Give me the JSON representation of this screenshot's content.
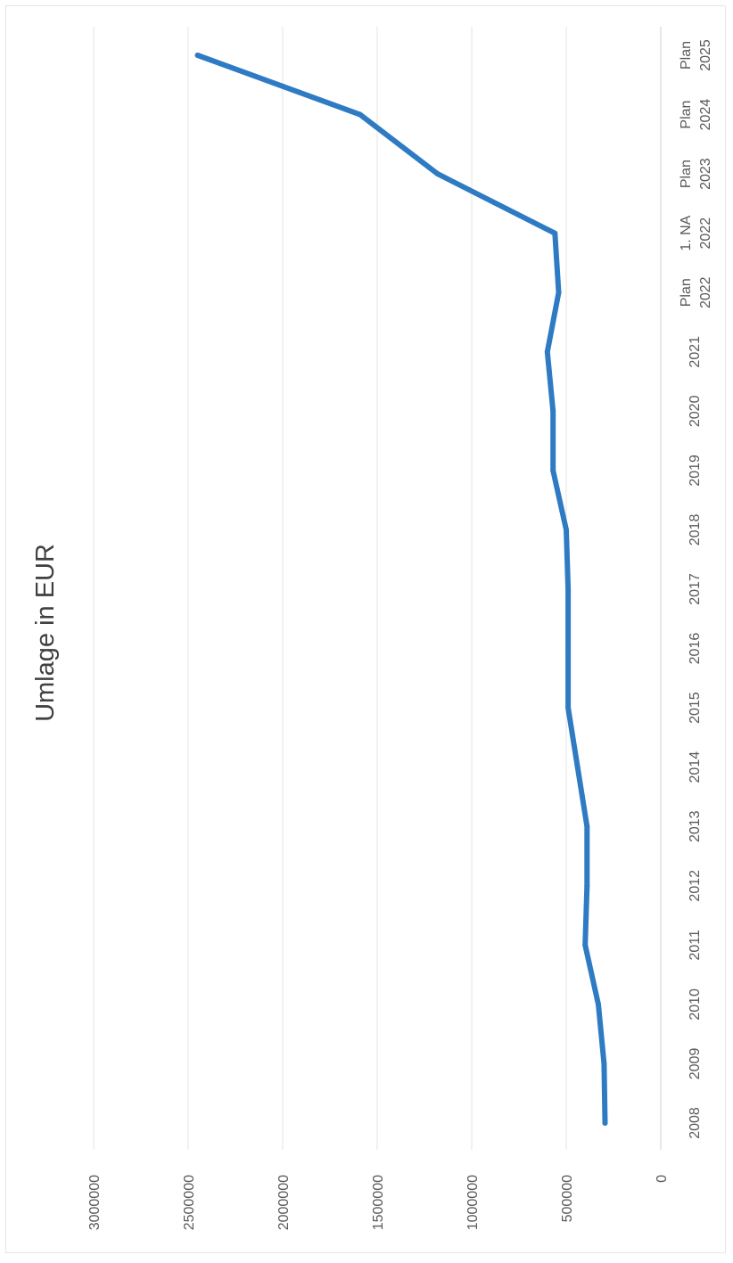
{
  "chart_data": {
    "type": "line",
    "title": "Umlage in EUR",
    "categories": [
      "2008",
      "2009",
      "2010",
      "2011",
      "2012",
      "2013",
      "2014",
      "2015",
      "2016",
      "2017",
      "2018",
      "2019",
      "2020",
      "2021",
      "Plan 2022",
      "1. NA 2022",
      "Plan 2023",
      "Plan 2024",
      "Plan 2025"
    ],
    "series": [
      {
        "values": [
          295000,
          300000,
          330000,
          400000,
          390000,
          390000,
          440000,
          490000,
          490000,
          490000,
          500000,
          570000,
          570000,
          600000,
          540000,
          560000,
          1180000,
          1590000,
          2450000
        ],
        "color": "#2e7bc4"
      }
    ],
    "ylim": [
      0,
      3000000
    ],
    "yticks": [
      "0",
      "500000",
      "1000000",
      "1500000",
      "2000000",
      "2500000",
      "3000000"
    ],
    "grid": true,
    "orientation": "rotated 90° counter-clockwise (value axis runs along the bottom, categories run up the right side)"
  }
}
